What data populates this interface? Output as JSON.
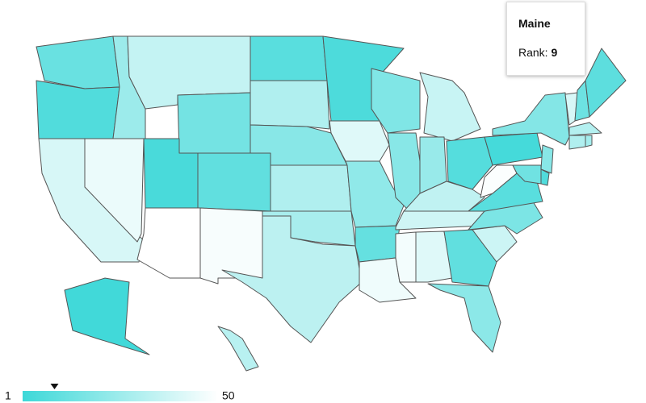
{
  "tooltip": {
    "title": "Maine",
    "rank_label": "Rank:",
    "rank": 9
  },
  "legend": {
    "min": 1,
    "max": 50
  },
  "map": {
    "ranks": [
      12,
      6,
      40,
      45,
      25,
      35,
      15,
      4,
      10,
      50,
      48,
      8,
      30,
      20,
      30,
      28,
      33,
      5,
      42,
      22,
      11,
      46,
      18,
      20,
      36,
      24,
      7,
      34,
      38,
      47,
      42,
      10,
      21,
      37,
      17,
      8,
      49,
      3,
      19,
      40,
      13,
      9,
      31,
      30,
      27,
      20,
      6,
      14,
      2,
      32
    ]
  }
}
